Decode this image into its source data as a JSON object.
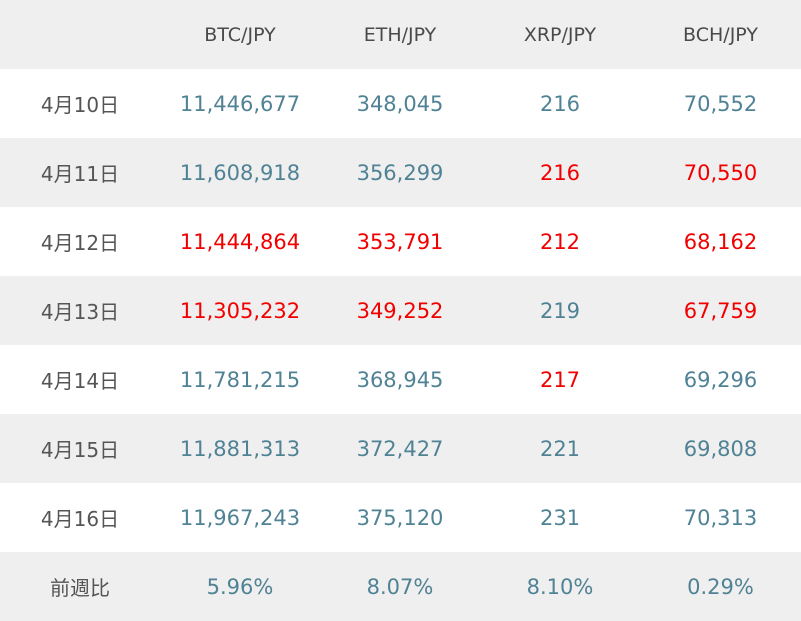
{
  "colors": {
    "positive": "#4f8294",
    "negative": "#f20000",
    "header_bg": "#efefef"
  },
  "header": {
    "corner": "",
    "columns": [
      "BTC/JPY",
      "ETH/JPY",
      "XRP/JPY",
      "BCH/JPY"
    ]
  },
  "rows": [
    {
      "date": "4月10日",
      "btc": "11,446,677",
      "eth": "348,045",
      "xrp": "216",
      "bch": "70,552",
      "neg": [
        false,
        false,
        false,
        false
      ]
    },
    {
      "date": "4月11日",
      "btc": "11,608,918",
      "eth": "356,299",
      "xrp": "216",
      "bch": "70,550",
      "neg": [
        false,
        false,
        true,
        true
      ]
    },
    {
      "date": "4月12日",
      "btc": "11,444,864",
      "eth": "353,791",
      "xrp": "212",
      "bch": "68,162",
      "neg": [
        true,
        true,
        true,
        true
      ]
    },
    {
      "date": "4月13日",
      "btc": "11,305,232",
      "eth": "349,252",
      "xrp": "219",
      "bch": "67,759",
      "neg": [
        true,
        true,
        false,
        true
      ]
    },
    {
      "date": "4月14日",
      "btc": "11,781,215",
      "eth": "368,945",
      "xrp": "217",
      "bch": "69,296",
      "neg": [
        false,
        false,
        true,
        false
      ]
    },
    {
      "date": "4月15日",
      "btc": "11,881,313",
      "eth": "372,427",
      "xrp": "221",
      "bch": "69,808",
      "neg": [
        false,
        false,
        false,
        false
      ]
    },
    {
      "date": "4月16日",
      "btc": "11,967,243",
      "eth": "375,120",
      "xrp": "231",
      "bch": "70,313",
      "neg": [
        false,
        false,
        false,
        false
      ]
    }
  ],
  "footer": {
    "label": "前週比",
    "btc": "5.96%",
    "eth": "8.07%",
    "xrp": "8.10%",
    "bch": "0.29%"
  }
}
